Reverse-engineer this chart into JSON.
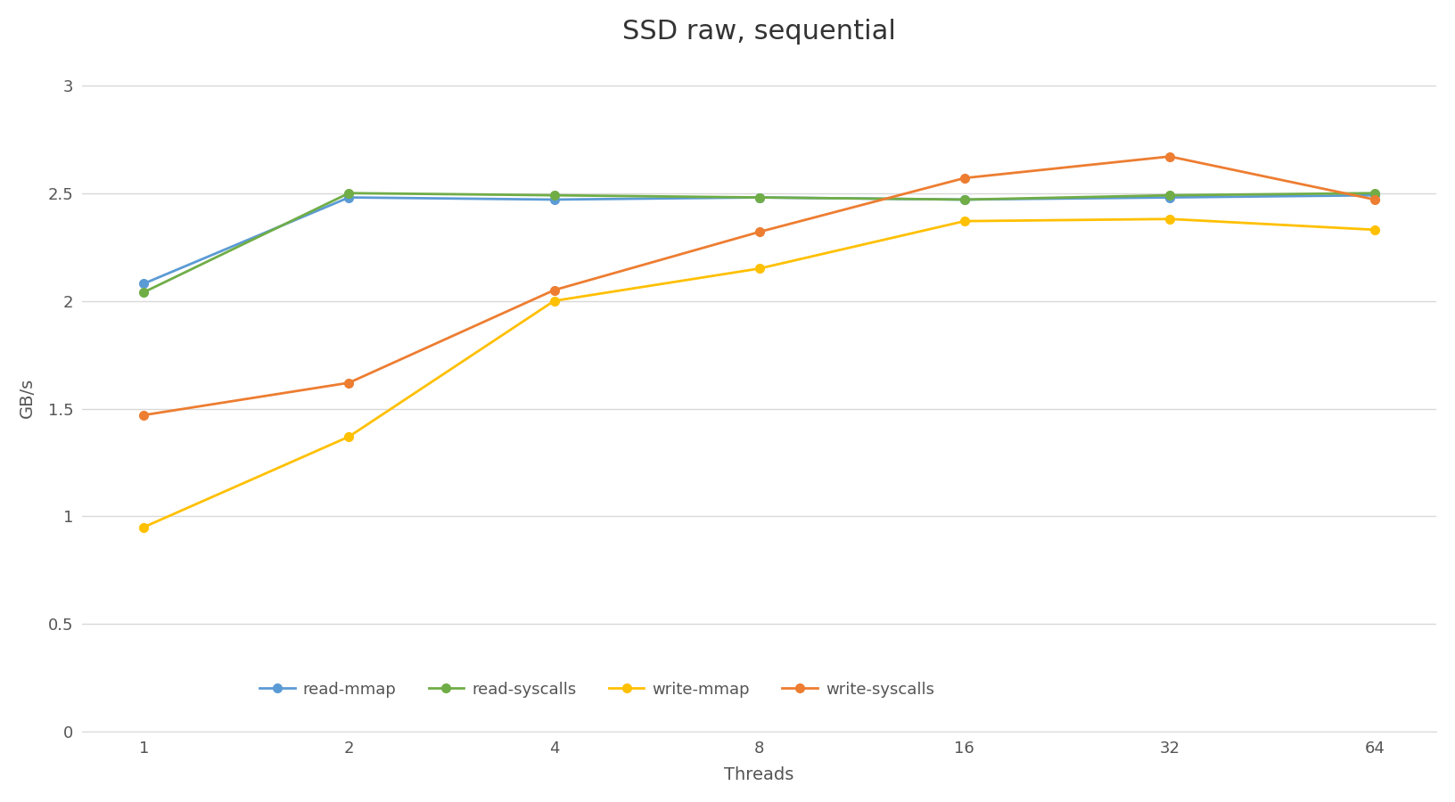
{
  "title": "SSD raw, sequential",
  "xlabel": "Threads",
  "ylabel": "GB/s",
  "x_values": [
    1,
    2,
    4,
    8,
    16,
    32,
    64
  ],
  "series": [
    {
      "label": "read-mmap",
      "color": "#5B9BD5",
      "values": [
        2.08,
        2.48,
        2.47,
        2.48,
        2.47,
        2.48,
        2.49
      ]
    },
    {
      "label": "read-syscalls",
      "color": "#70AD47",
      "values": [
        2.04,
        2.5,
        2.49,
        2.48,
        2.47,
        2.49,
        2.5
      ]
    },
    {
      "label": "write-mmap",
      "color": "#FFC000",
      "values": [
        0.95,
        1.37,
        2.0,
        2.15,
        2.37,
        2.38,
        2.33
      ]
    },
    {
      "label": "write-syscalls",
      "color": "#ED7D31",
      "values": [
        1.47,
        1.62,
        2.05,
        2.32,
        2.57,
        2.67,
        2.47
      ]
    }
  ],
  "ylim": [
    0,
    3.1
  ],
  "yticks": [
    0,
    0.5,
    1,
    1.5,
    2,
    2.5,
    3
  ],
  "ytick_labels": [
    "0",
    "0.5",
    "1",
    "1.5",
    "2",
    "2.5",
    "3"
  ],
  "background_color": "#FFFFFF",
  "grid_color": "#D9D9D9",
  "title_fontsize": 22,
  "axis_label_fontsize": 14,
  "tick_fontsize": 13,
  "legend_fontsize": 13,
  "marker": "o",
  "marker_size": 7,
  "line_width": 2.0
}
